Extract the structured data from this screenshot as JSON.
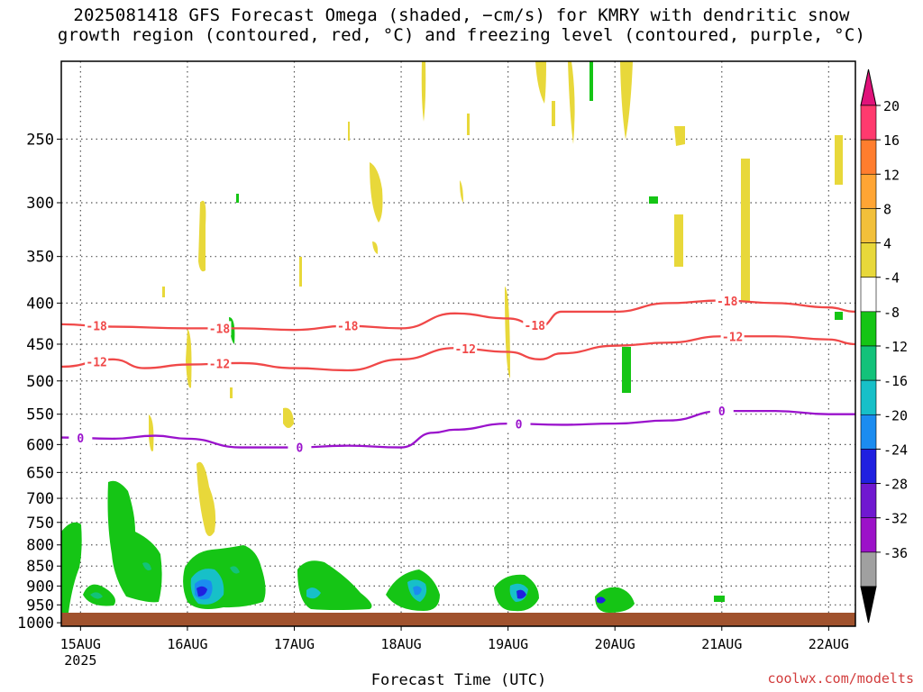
{
  "title": {
    "line1": "2025081418 GFS Forecast Omega (shaded, −cm/s) for KMRY with dendritic snow",
    "line2": "growth region (contoured, red, °C) and freezing level (contoured, purple, °C)"
  },
  "credit": "coolwx.com/modelts",
  "chart_data": {
    "type": "heatmap",
    "title": "2025081418 GFS Forecast Omega (shaded, −cm/s) for KMRY with dendritic snow growth region (contoured, red, °C) and freezing level (contoured, purple, °C)",
    "xlabel": "Forecast Time (UTC)",
    "ylabel": "",
    "x_ticks": [
      {
        "label": "15AUG",
        "sub": "2025",
        "day": 0
      },
      {
        "label": "16AUG",
        "sub": "",
        "day": 1
      },
      {
        "label": "17AUG",
        "sub": "",
        "day": 2
      },
      {
        "label": "18AUG",
        "sub": "",
        "day": 3
      },
      {
        "label": "19AUG",
        "sub": "",
        "day": 4
      },
      {
        "label": "20AUG",
        "sub": "",
        "day": 5
      },
      {
        "label": "21AUG",
        "sub": "",
        "day": 6
      },
      {
        "label": "22AUG",
        "sub": "",
        "day": 7
      }
    ],
    "x_range_days": [
      -0.18,
      7.25
    ],
    "y_axis": "pressure (hPa), log scale",
    "y_ticks": [
      250,
      300,
      350,
      400,
      450,
      500,
      550,
      600,
      650,
      700,
      750,
      800,
      850,
      900,
      950,
      1000
    ],
    "y_range": [
      200,
      1010
    ],
    "grid": true,
    "colorbar": {
      "labels": [
        "20",
        "16",
        "12",
        "8",
        "4",
        "-4",
        "-8",
        "-12",
        "-16",
        "-20",
        "-24",
        "-28",
        "-32",
        "-36"
      ],
      "colors": [
        "#ff3a6e",
        "#ff7d2e",
        "#ffa534",
        "#f2c03a",
        "#e8d83a",
        "#ffffff",
        "#15c515",
        "#13c27a",
        "#17c0c8",
        "#1b8cf0",
        "#2020e0",
        "#7018d0",
        "#9c12c8",
        "#a0a0a0"
      ],
      "top_cap_color": "#e0127a",
      "bottom_cap_color": "#000000"
    },
    "isotherms": [
      {
        "value": -18,
        "color": "red",
        "x": [
          -0.18,
          0.3,
          1.0,
          1.5,
          2.0,
          2.5,
          3.0,
          3.5,
          4.0,
          4.3,
          4.5,
          5.0,
          5.5,
          6.0,
          6.5,
          7.0,
          7.25
        ],
        "y": [
          425,
          428,
          430,
          430,
          432,
          427,
          430,
          412,
          418,
          428,
          410,
          410,
          400,
          397,
          400,
          405,
          410
        ]
      },
      {
        "value": -12,
        "color": "red",
        "x": [
          -0.18,
          0.3,
          0.6,
          1.0,
          1.5,
          2.0,
          2.5,
          3.0,
          3.5,
          4.0,
          4.3,
          4.5,
          5.0,
          5.5,
          6.0,
          6.5,
          7.0,
          7.25
        ],
        "y": [
          480,
          470,
          482,
          477,
          475,
          482,
          485,
          470,
          455,
          460,
          470,
          462,
          452,
          448,
          440,
          440,
          444,
          450
        ]
      },
      {
        "value": 0,
        "color": "purple",
        "x": [
          -0.18,
          0.3,
          0.7,
          1.0,
          1.5,
          2.0,
          2.5,
          3.0,
          3.3,
          3.5,
          4.0,
          4.5,
          5.0,
          5.5,
          6.0,
          6.5,
          7.0,
          7.25
        ],
        "y": [
          588,
          590,
          585,
          590,
          605,
          605,
          602,
          605,
          580,
          575,
          565,
          567,
          565,
          560,
          545,
          545,
          550,
          550
        ]
      }
    ],
    "shaded_regions": [
      {
        "kind": "ascent",
        "level": "-4 to -8",
        "day_range": [
          -0.18,
          0.05
        ],
        "p_range": [
          795,
          1000
        ]
      },
      {
        "kind": "ascent",
        "level": "-4 to -8",
        "day_range": [
          0.05,
          0.45
        ],
        "p_range": [
          925,
          990
        ]
      },
      {
        "kind": "ascent",
        "level": "-4 to -8",
        "day_range": [
          0.3,
          1.0
        ],
        "p_range": [
          690,
          980
        ]
      },
      {
        "kind": "ascent",
        "level": "-20 to -24",
        "day_range": [
          0.7,
          1.8
        ],
        "p_range": [
          870,
          1000
        ]
      },
      {
        "kind": "ascent",
        "level": "-8 to -12",
        "day_range": [
          1.85,
          2.7
        ],
        "p_range": [
          880,
          1000
        ]
      },
      {
        "kind": "ascent",
        "level": "-16 to -20",
        "day_range": [
          2.85,
          3.4
        ],
        "p_range": [
          910,
          1000
        ]
      },
      {
        "kind": "ascent",
        "level": "-20 to -24",
        "day_range": [
          3.85,
          4.3
        ],
        "p_range": [
          915,
          1000
        ]
      },
      {
        "kind": "ascent",
        "level": "-16 to -20",
        "day_range": [
          4.75,
          5.15
        ],
        "p_range": [
          945,
          1000
        ]
      },
      {
        "kind": "descent",
        "level": "4 to 8",
        "day_range": [
          0.95,
          1.3
        ],
        "p_range": [
          650,
          815
        ]
      },
      {
        "kind": "descent",
        "level": "4 to 8",
        "day_range": [
          0.95,
          1.05
        ],
        "p_range": [
          312,
          380
        ]
      }
    ]
  }
}
